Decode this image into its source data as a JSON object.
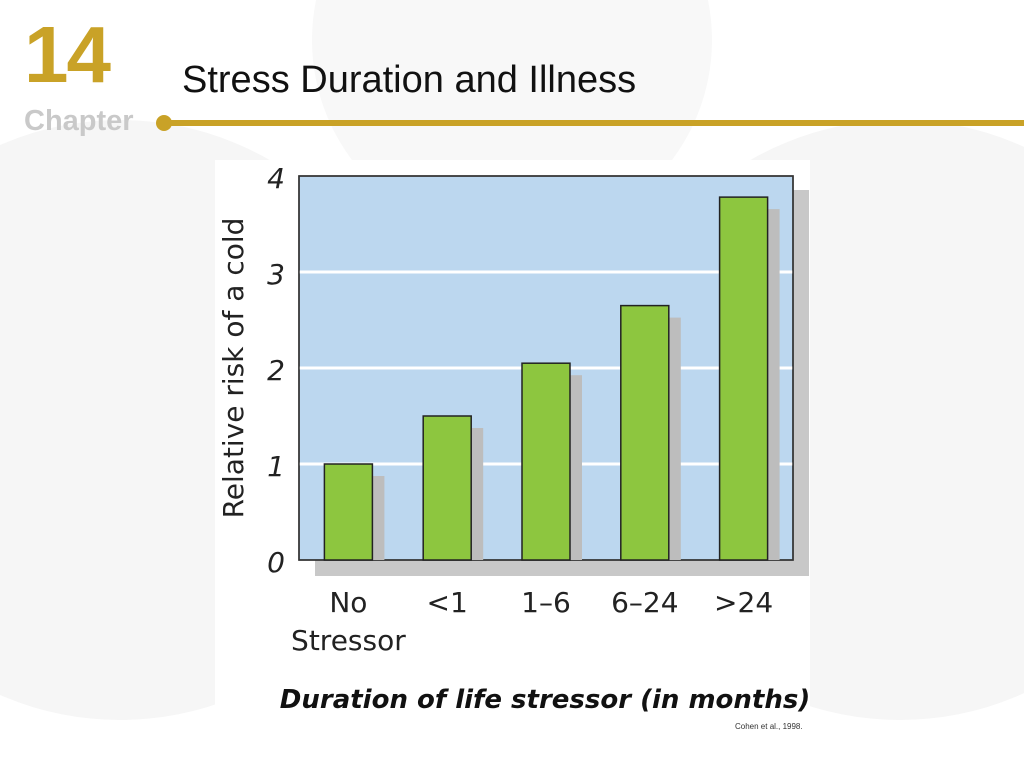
{
  "slide": {
    "chapter_number": "14",
    "chapter_label": "Chapter",
    "title": "Stress Duration and Illness",
    "credit": "Cohen et al., 1998."
  },
  "colors": {
    "accent": "#c9a227",
    "plot_background": "#bcd7ef",
    "bar": "#8dc63f",
    "bar_shadow": "#bdbdbd"
  },
  "chart_data": {
    "type": "bar",
    "categories": [
      "No\nStressor",
      "<1",
      "1–6",
      "6–24",
      ">24"
    ],
    "values": [
      1.0,
      1.5,
      2.05,
      2.65,
      3.78
    ],
    "ylabel": "Relative risk of a cold",
    "xlabel": "Duration of life stressor (in months)",
    "ylim": [
      0,
      4
    ],
    "yticks": [
      0,
      1,
      2,
      3,
      4
    ],
    "grid": true
  }
}
